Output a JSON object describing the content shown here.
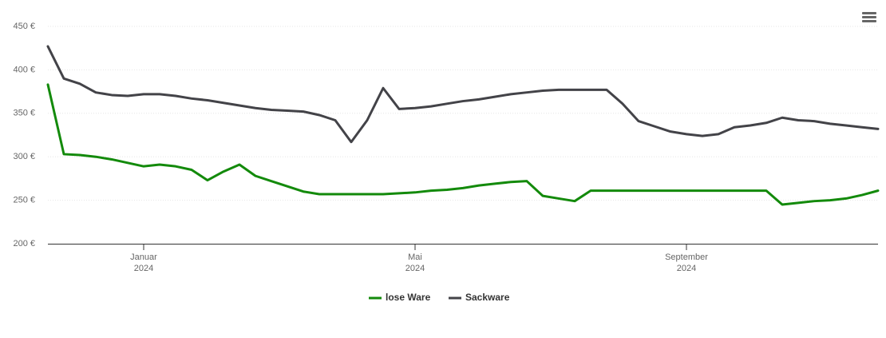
{
  "chart_data": {
    "type": "line",
    "categories": [
      null,
      null,
      null,
      null,
      null,
      null,
      "Januar\n2024",
      null,
      null,
      null,
      null,
      null,
      null,
      null,
      null,
      null,
      null,
      null,
      null,
      null,
      null,
      null,
      null,
      "Mai\n2024",
      null,
      null,
      null,
      null,
      null,
      null,
      null,
      null,
      null,
      null,
      null,
      null,
      null,
      null,
      null,
      null,
      "September\n2024",
      null,
      null,
      null,
      null,
      null,
      null,
      null,
      null,
      null,
      null,
      null,
      null
    ],
    "series": [
      {
        "name": "lose Ware",
        "color": "#138a0b",
        "values": [
          383,
          303,
          302,
          300,
          297,
          293,
          289,
          291,
          289,
          285,
          273,
          283,
          291,
          278,
          272,
          266,
          260,
          257,
          257,
          257,
          257,
          257,
          258,
          259,
          261,
          262,
          264,
          267,
          269,
          271,
          272,
          255,
          252,
          249,
          261,
          261,
          261,
          261,
          261,
          261,
          261,
          261,
          261,
          261,
          261,
          261,
          245,
          247,
          249,
          250,
          252,
          256,
          261
        ]
      },
      {
        "name": "Sackware",
        "color": "#434348",
        "values": [
          427,
          390,
          384,
          374,
          371,
          370,
          372,
          372,
          370,
          367,
          365,
          362,
          359,
          356,
          354,
          353,
          352,
          348,
          342,
          317,
          342,
          379,
          355,
          356,
          358,
          361,
          364,
          366,
          369,
          372,
          374,
          376,
          377,
          377,
          377,
          377,
          361,
          341,
          335,
          329,
          326,
          324,
          326,
          334,
          336,
          339,
          345,
          342,
          341,
          338,
          336,
          334,
          332
        ]
      }
    ],
    "ylim": [
      200,
      450
    ],
    "yticks": [
      {
        "value": 200,
        "label": "200 €"
      },
      {
        "value": 250,
        "label": "250 €"
      },
      {
        "value": 300,
        "label": "300 €"
      },
      {
        "value": 350,
        "label": "350 €"
      },
      {
        "value": 400,
        "label": "400 €"
      },
      {
        "value": 450,
        "label": "450 €"
      }
    ],
    "grid": true,
    "legend": "bottom"
  }
}
